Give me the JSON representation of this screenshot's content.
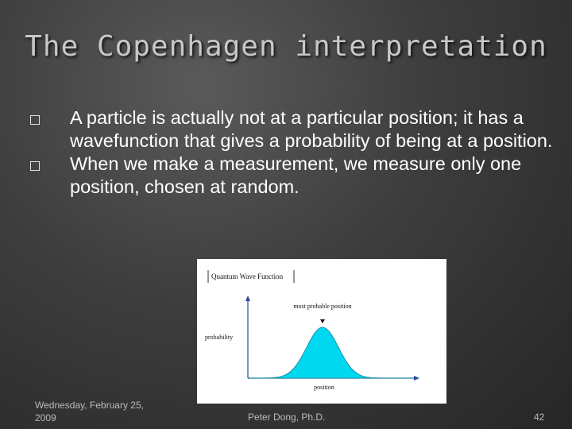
{
  "slide": {
    "title": "The Copenhagen interpretation",
    "bullets": [
      "A particle is actually not at a particular position; it has a wavefunction that gives a probability of being at a position.",
      "When we make a measurement, we measure only one position, chosen at random."
    ]
  },
  "figure": {
    "header": "Quantum Wave Function",
    "peak_label": "most probable position",
    "y_label": "probability",
    "x_label": "position",
    "curve_color": "#00d8f0"
  },
  "footer": {
    "date": "Wednesday, February 25, 2009",
    "author": "Peter Dong, Ph.D.",
    "page": "42"
  }
}
